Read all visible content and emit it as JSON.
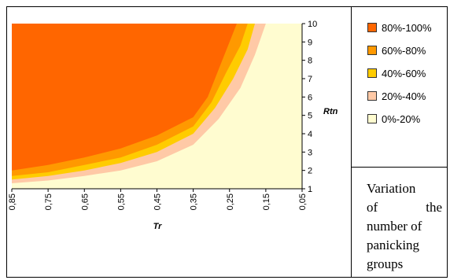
{
  "chart_data": {
    "type": "area",
    "xlabel": "Tr",
    "ylabel": "Rtn",
    "x_ticks": [
      "0,85",
      "0,75",
      "0,65",
      "0,55",
      "0,45",
      "0,35",
      "0,25",
      "0,15",
      "0,05"
    ],
    "y_ticks": [
      "1",
      "2",
      "3",
      "4",
      "5",
      "6",
      "7",
      "8",
      "9",
      "10"
    ],
    "xlim": [
      0.85,
      0.05
    ],
    "ylim": [
      1,
      10
    ],
    "series": [
      {
        "name": "0%-20%",
        "color": "#FFFCD0",
        "boundary": []
      },
      {
        "name": "20%-40%",
        "color": "#FFC9A6",
        "boundary": [
          [
            0.85,
            1.3
          ],
          [
            0.75,
            1.45
          ],
          [
            0.65,
            1.7
          ],
          [
            0.55,
            2.0
          ],
          [
            0.45,
            2.5
          ],
          [
            0.35,
            3.4
          ],
          [
            0.28,
            4.8
          ],
          [
            0.22,
            6.5
          ],
          [
            0.18,
            8.3
          ],
          [
            0.15,
            10
          ]
        ]
      },
      {
        "name": "40%-60%",
        "color": "#FFCC00",
        "boundary": [
          [
            0.85,
            1.5
          ],
          [
            0.75,
            1.7
          ],
          [
            0.65,
            2.0
          ],
          [
            0.55,
            2.4
          ],
          [
            0.45,
            3.0
          ],
          [
            0.35,
            4.0
          ],
          [
            0.29,
            5.4
          ],
          [
            0.24,
            7.0
          ],
          [
            0.2,
            8.6
          ],
          [
            0.18,
            10
          ]
        ]
      },
      {
        "name": "60%-80%",
        "color": "#FF9900",
        "boundary": [
          [
            0.85,
            1.7
          ],
          [
            0.75,
            1.9
          ],
          [
            0.65,
            2.3
          ],
          [
            0.55,
            2.7
          ],
          [
            0.45,
            3.4
          ],
          [
            0.35,
            4.4
          ],
          [
            0.3,
            5.7
          ],
          [
            0.26,
            7.3
          ],
          [
            0.22,
            8.8
          ],
          [
            0.2,
            10
          ]
        ]
      },
      {
        "name": "80%-100%",
        "color": "#FF6600",
        "boundary": [
          [
            0.85,
            2.0
          ],
          [
            0.75,
            2.3
          ],
          [
            0.65,
            2.7
          ],
          [
            0.55,
            3.2
          ],
          [
            0.45,
            3.9
          ],
          [
            0.35,
            4.9
          ],
          [
            0.31,
            6.0
          ],
          [
            0.28,
            7.5
          ],
          [
            0.25,
            9.0
          ],
          [
            0.23,
            10
          ]
        ]
      }
    ]
  },
  "legend": {
    "items": [
      {
        "label": "80%-100%",
        "color": "#FF6600"
      },
      {
        "label": "60%-80%",
        "color": "#FF9900"
      },
      {
        "label": "40%-60%",
        "color": "#FFCC00"
      },
      {
        "label": "20%-40%",
        "color": "#FFC9A6"
      },
      {
        "label": "0%-20%",
        "color": "#FFFCD0"
      }
    ]
  },
  "caption": {
    "line1": "Variation",
    "line2a": "of",
    "line2b": "the",
    "line3": "number of",
    "line4": "panicking",
    "line5": "groups"
  }
}
